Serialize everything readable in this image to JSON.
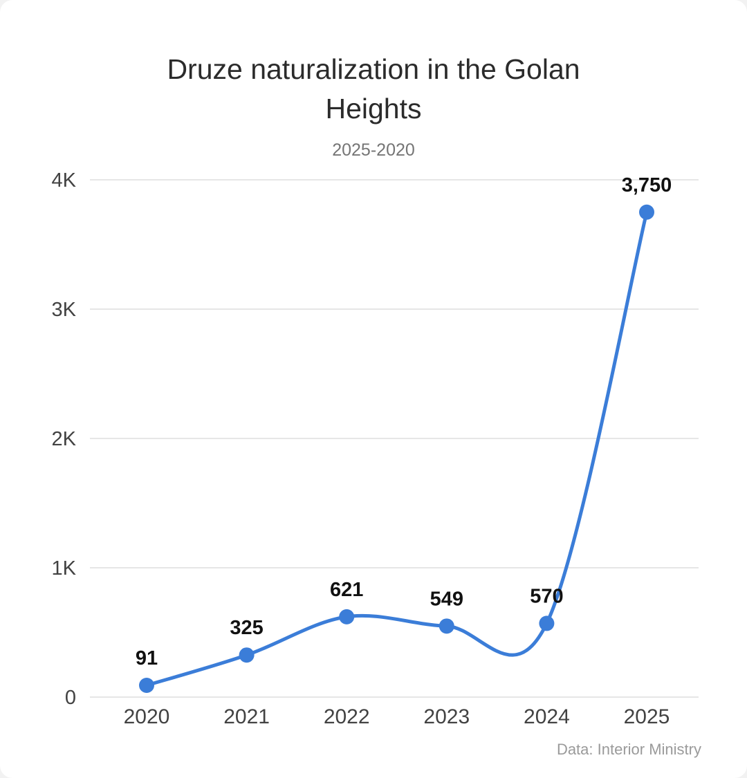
{
  "header": {
    "title": "Druze naturalization in the Golan Heights",
    "subtitle": "2025-2020"
  },
  "footer": {
    "source": "Data: Interior Ministry"
  },
  "chart_data": {
    "type": "line",
    "title": "Druze naturalization in the Golan Heights",
    "subtitle": "2025-2020",
    "categories": [
      "2020",
      "2021",
      "2022",
      "2023",
      "2024",
      "2025"
    ],
    "values": [
      91,
      325,
      621,
      549,
      570,
      3750
    ],
    "value_labels": [
      "91",
      "325",
      "621",
      "549",
      "570",
      "3,750"
    ],
    "xlabel": "",
    "ylabel": "",
    "ylim": [
      0,
      4000
    ],
    "y_ticks": [
      {
        "value": 0,
        "label": "0"
      },
      {
        "value": 1000,
        "label": "1K"
      },
      {
        "value": 2000,
        "label": "2K"
      },
      {
        "value": 3000,
        "label": "3K"
      },
      {
        "value": 4000,
        "label": "4K"
      }
    ],
    "grid": true,
    "legend": "none",
    "curve": "smooth",
    "source": "Data: Interior Ministry",
    "colors": {
      "line": "#3b7dd8",
      "marker": "#3b7dd8",
      "gridline": "#e6e6e6",
      "axis_text": "#424242",
      "point_label_text": "#111111"
    }
  }
}
